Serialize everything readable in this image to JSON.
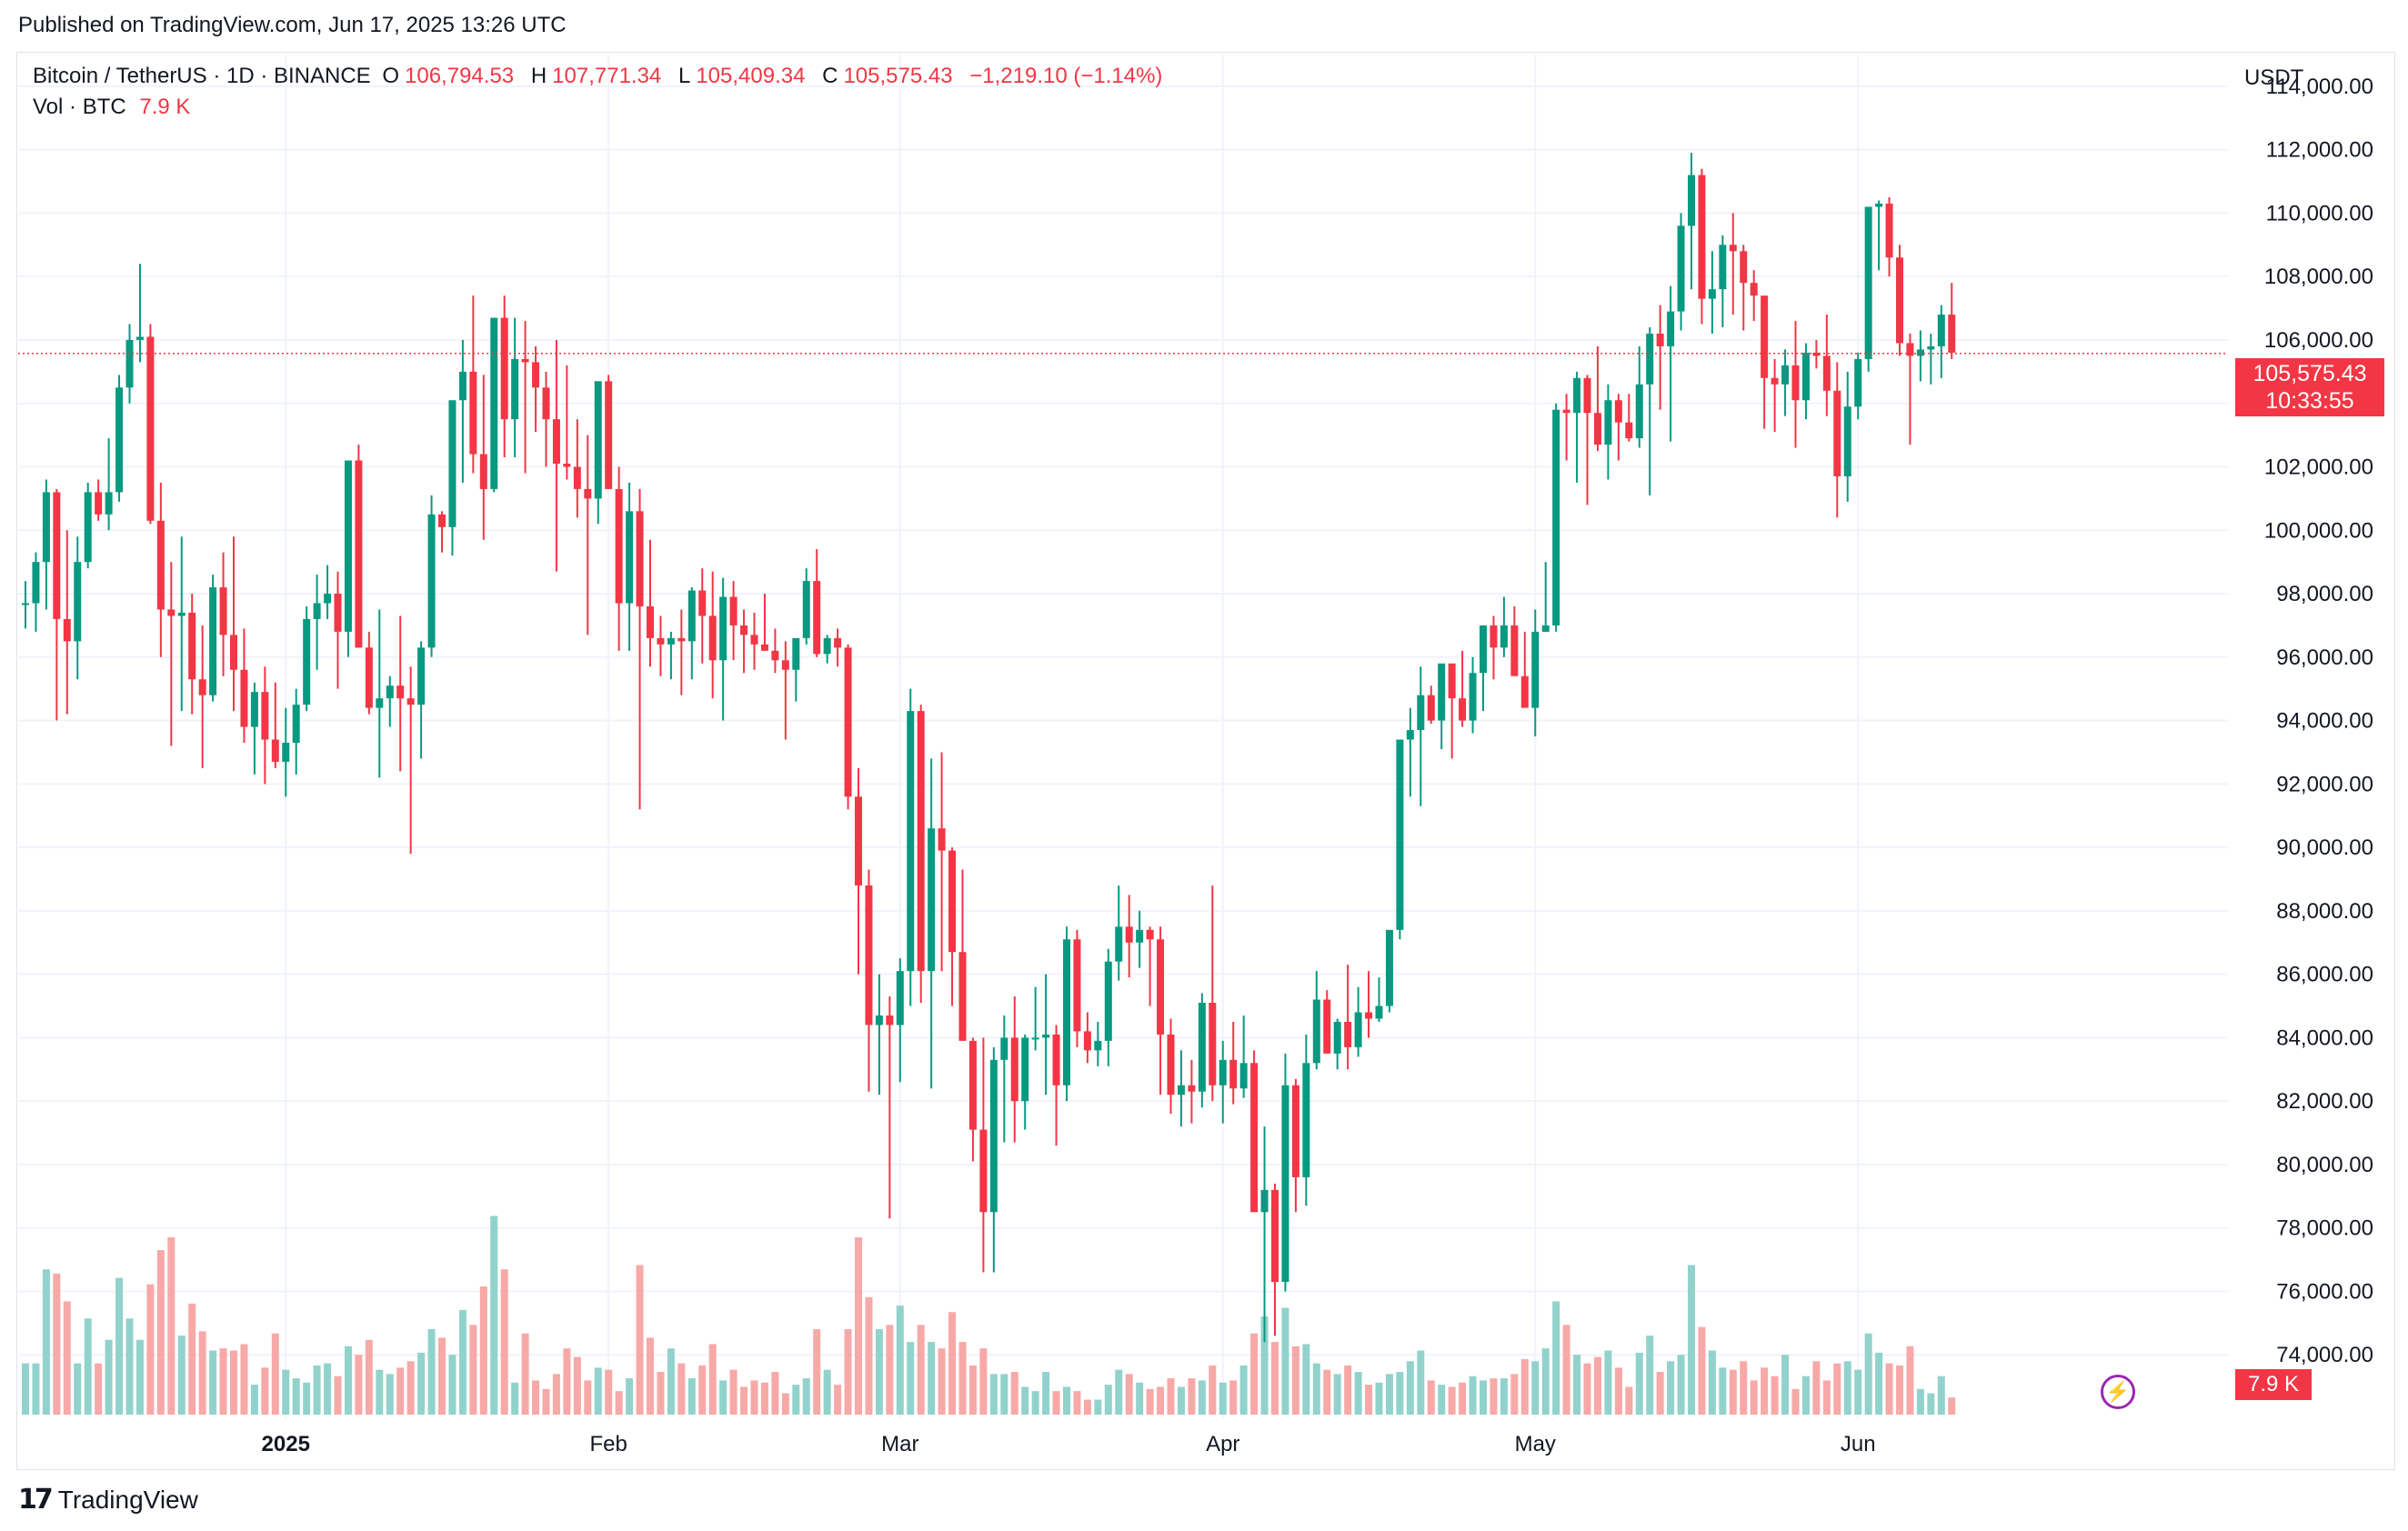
{
  "header": {
    "published": "Published on TradingView.com, Jun 17, 2025 13:26 UTC"
  },
  "legend": {
    "symbol": "Bitcoin / TetherUS · 1D · BINANCE",
    "open_label": "O",
    "open": "106,794.53",
    "high_label": "H",
    "high": "107,771.34",
    "low_label": "L",
    "low": "105,409.34",
    "close_label": "C",
    "close": "105,575.43",
    "change": "−1,219.10 (−1.14%)",
    "vol_label": "Vol · BTC",
    "vol_value": "7.9 K"
  },
  "price_axis": {
    "unit": "USDT"
  },
  "last_price": {
    "price": "105,575.43",
    "countdown": "10:33:55",
    "volume_tag": "7.9 K"
  },
  "footer": {
    "brand": "TradingView",
    "brand_mark": "17"
  },
  "colors": {
    "up": "#089981",
    "down": "#f23645",
    "vol_up": "#92d2cc",
    "vol_down": "#f7a9a7",
    "grid": "#f0f3fa"
  },
  "chart_data": {
    "type": "candlestick",
    "symbol": "BTCUSDT",
    "interval": "1D",
    "ylim": [
      72000,
      115000
    ],
    "y_ticks": [
      74000,
      76000,
      78000,
      80000,
      82000,
      84000,
      86000,
      88000,
      90000,
      92000,
      94000,
      96000,
      98000,
      100000,
      102000,
      104000,
      106000,
      108000,
      110000,
      112000,
      114000
    ],
    "x_ticks": [
      {
        "label": "2025",
        "index": 25,
        "bold": true
      },
      {
        "label": "Feb",
        "index": 56
      },
      {
        "label": "Mar",
        "index": 84
      },
      {
        "label": "Apr",
        "index": 115
      },
      {
        "label": "May",
        "index": 145
      },
      {
        "label": "Jun",
        "index": 176
      }
    ],
    "last_close": 105575.43,
    "grid": true,
    "series_ohlcv": [
      [
        97700,
        98400,
        96900,
        97700,
        24
      ],
      [
        97700,
        99300,
        96800,
        99000,
        24
      ],
      [
        99000,
        101600,
        97500,
        101200,
        68
      ],
      [
        101200,
        101300,
        94000,
        97200,
        66
      ],
      [
        97200,
        100000,
        94200,
        96500,
        53
      ],
      [
        96500,
        99800,
        95300,
        99000,
        24
      ],
      [
        99000,
        101500,
        98800,
        101200,
        45
      ],
      [
        101200,
        101600,
        100300,
        100500,
        24
      ],
      [
        100500,
        102900,
        100000,
        101200,
        35
      ],
      [
        101200,
        104900,
        100900,
        104500,
        64
      ],
      [
        104500,
        106500,
        104000,
        106000,
        45
      ],
      [
        106000,
        108400,
        105300,
        106100,
        35
      ],
      [
        106100,
        106500,
        100200,
        100300,
        61
      ],
      [
        100300,
        101500,
        96000,
        97500,
        77
      ],
      [
        97500,
        99000,
        93200,
        97300,
        83
      ],
      [
        97300,
        99800,
        94300,
        97400,
        37
      ],
      [
        97400,
        98000,
        94200,
        95300,
        52
      ],
      [
        95300,
        97000,
        92500,
        94800,
        39
      ],
      [
        94800,
        98600,
        94600,
        98200,
        30
      ],
      [
        98200,
        99300,
        95400,
        96700,
        31
      ],
      [
        96700,
        99800,
        94300,
        95600,
        30
      ],
      [
        95600,
        96900,
        93300,
        93800,
        33
      ],
      [
        93800,
        95200,
        92300,
        94900,
        14
      ],
      [
        94900,
        95700,
        92000,
        93400,
        22
      ],
      [
        93400,
        95200,
        92500,
        92700,
        38
      ],
      [
        92700,
        94400,
        91600,
        93300,
        21
      ],
      [
        93300,
        95000,
        92300,
        94500,
        17
      ],
      [
        94500,
        97600,
        94300,
        97200,
        15
      ],
      [
        97200,
        98600,
        95600,
        97700,
        23
      ],
      [
        97700,
        98900,
        97200,
        98000,
        24
      ],
      [
        98000,
        98700,
        95000,
        96800,
        18
      ],
      [
        96800,
        101200,
        96000,
        102200,
        32
      ],
      [
        102200,
        102700,
        96300,
        96300,
        28
      ],
      [
        96300,
        96800,
        94200,
        94400,
        35
      ],
      [
        94400,
        97500,
        92200,
        94700,
        21
      ],
      [
        94700,
        95400,
        93800,
        95100,
        19
      ],
      [
        95100,
        97300,
        92400,
        94700,
        22
      ],
      [
        94700,
        95700,
        89800,
        94500,
        25
      ],
      [
        94500,
        96500,
        92800,
        96300,
        29
      ],
      [
        96300,
        101100,
        96000,
        100500,
        40
      ],
      [
        100500,
        100600,
        99300,
        100100,
        36
      ],
      [
        100100,
        104000,
        99200,
        104100,
        28
      ],
      [
        104100,
        106000,
        101500,
        105000,
        49
      ],
      [
        105000,
        107400,
        101800,
        102400,
        42
      ],
      [
        102400,
        104900,
        99700,
        101300,
        60
      ],
      [
        101300,
        106300,
        101200,
        106700,
        93
      ],
      [
        106700,
        107400,
        102300,
        103500,
        68
      ],
      [
        103500,
        106700,
        102300,
        105400,
        15
      ],
      [
        105400,
        106600,
        101800,
        105300,
        38
      ],
      [
        105300,
        105800,
        103100,
        104500,
        16
      ],
      [
        104500,
        105000,
        102000,
        103500,
        12
      ],
      [
        103500,
        106000,
        98700,
        102100,
        19
      ],
      [
        102100,
        105200,
        101600,
        102000,
        31
      ],
      [
        102000,
        103500,
        100400,
        101300,
        27
      ],
      [
        101300,
        103000,
        96700,
        101000,
        16
      ],
      [
        101000,
        103200,
        100200,
        104700,
        22
      ],
      [
        104700,
        104900,
        101500,
        101300,
        21
      ],
      [
        101300,
        102000,
        96200,
        97700,
        11
      ],
      [
        97700,
        101500,
        96200,
        100600,
        17
      ],
      [
        100600,
        101300,
        91200,
        97600,
        70
      ],
      [
        97600,
        99700,
        95700,
        96600,
        36
      ],
      [
        96600,
        97300,
        95400,
        96400,
        20
      ],
      [
        96400,
        96800,
        95300,
        96600,
        31
      ],
      [
        96600,
        97500,
        94800,
        96500,
        24
      ],
      [
        96500,
        98200,
        95300,
        98100,
        17
      ],
      [
        98100,
        98800,
        95800,
        97300,
        23
      ],
      [
        97300,
        98700,
        94700,
        95900,
        33
      ],
      [
        95900,
        98500,
        94000,
        97900,
        16
      ],
      [
        97900,
        98400,
        95900,
        97000,
        21
      ],
      [
        97000,
        97500,
        95500,
        96700,
        13
      ],
      [
        96700,
        97400,
        95600,
        96400,
        16
      ],
      [
        96400,
        98000,
        96200,
        96200,
        15
      ],
      [
        96200,
        96900,
        95500,
        95900,
        20
      ],
      [
        95900,
        96500,
        93400,
        95600,
        10
      ],
      [
        95600,
        96400,
        94600,
        96600,
        14
      ],
      [
        96600,
        98800,
        96400,
        98400,
        17
      ],
      [
        98400,
        99400,
        96000,
        96100,
        40
      ],
      [
        96100,
        96700,
        95800,
        96600,
        21
      ],
      [
        96600,
        96900,
        95700,
        96300,
        14
      ],
      [
        96300,
        96400,
        91200,
        91600,
        40
      ],
      [
        91600,
        92500,
        86000,
        88800,
        83
      ],
      [
        88800,
        89300,
        82300,
        84400,
        55
      ],
      [
        84400,
        86000,
        82200,
        84700,
        40
      ],
      [
        84700,
        85300,
        78300,
        84400,
        42
      ],
      [
        84400,
        86500,
        82600,
        86100,
        51
      ],
      [
        86100,
        95000,
        85000,
        94300,
        34
      ],
      [
        94300,
        94500,
        85100,
        86100,
        42
      ],
      [
        86100,
        92800,
        82400,
        90600,
        34
      ],
      [
        90600,
        93000,
        86100,
        89900,
        31
      ],
      [
        89900,
        90000,
        85000,
        86700,
        48
      ],
      [
        86700,
        89300,
        84700,
        83900,
        34
      ],
      [
        83900,
        84000,
        80100,
        81100,
        23
      ],
      [
        81100,
        84000,
        76600,
        78500,
        31
      ],
      [
        78500,
        83700,
        76600,
        83300,
        19
      ],
      [
        83300,
        84700,
        80700,
        84000,
        19
      ],
      [
        84000,
        85300,
        80700,
        82000,
        20
      ],
      [
        82000,
        84100,
        81100,
        84000,
        13
      ],
      [
        84000,
        85600,
        83600,
        84000,
        11
      ],
      [
        84000,
        86000,
        82200,
        84100,
        20
      ],
      [
        84100,
        84400,
        80600,
        82500,
        11
      ],
      [
        82500,
        87500,
        82000,
        87100,
        13
      ],
      [
        87100,
        87400,
        83700,
        84200,
        11
      ],
      [
        84200,
        84800,
        83200,
        83600,
        7
      ],
      [
        83600,
        84500,
        83100,
        83900,
        7
      ],
      [
        83900,
        86800,
        83100,
        86400,
        14
      ],
      [
        86400,
        88800,
        85800,
        87500,
        21
      ],
      [
        87500,
        88500,
        85900,
        87000,
        19
      ],
      [
        87000,
        88000,
        86200,
        87400,
        15
      ],
      [
        87400,
        87500,
        85000,
        87100,
        12
      ],
      [
        87100,
        87500,
        82200,
        84100,
        13
      ],
      [
        84100,
        84600,
        81600,
        82200,
        17
      ],
      [
        82200,
        83600,
        81200,
        82500,
        13
      ],
      [
        82500,
        83300,
        81300,
        82300,
        17
      ],
      [
        82300,
        85400,
        81800,
        85100,
        16
      ],
      [
        85100,
        88800,
        82000,
        82500,
        23
      ],
      [
        82500,
        83900,
        81300,
        83300,
        15
      ],
      [
        83300,
        84500,
        81900,
        82400,
        16
      ],
      [
        82400,
        84700,
        82100,
        83200,
        23
      ],
      [
        83200,
        83600,
        79500,
        78500,
        38
      ],
      [
        78500,
        81200,
        74400,
        79200,
        46
      ],
      [
        79200,
        79400,
        74600,
        76300,
        34
      ],
      [
        76300,
        83500,
        76000,
        82500,
        50
      ],
      [
        82500,
        82700,
        78500,
        79600,
        32
      ],
      [
        79600,
        84100,
        78700,
        83200,
        33
      ],
      [
        83200,
        86100,
        83000,
        85200,
        24
      ],
      [
        85200,
        85500,
        83500,
        83500,
        21
      ],
      [
        83500,
        84600,
        83000,
        84500,
        19
      ],
      [
        84500,
        86300,
        83000,
        83700,
        23
      ],
      [
        83700,
        85600,
        83400,
        84800,
        20
      ],
      [
        84800,
        86100,
        84000,
        84600,
        14
      ],
      [
        84600,
        85900,
        84500,
        85000,
        15
      ],
      [
        85000,
        87000,
        84800,
        87400,
        19
      ],
      [
        87400,
        88600,
        87100,
        93400,
        20
      ],
      [
        93400,
        94400,
        91600,
        93700,
        25
      ],
      [
        93700,
        95700,
        91300,
        94800,
        30
      ],
      [
        94800,
        95100,
        93900,
        94000,
        16
      ],
      [
        94000,
        95000,
        93100,
        95800,
        14
      ],
      [
        95800,
        95500,
        92800,
        94700,
        13
      ],
      [
        94700,
        96200,
        93800,
        94000,
        15
      ],
      [
        94000,
        96000,
        93600,
        95500,
        18
      ],
      [
        95500,
        96500,
        94300,
        97000,
        16
      ],
      [
        97000,
        97300,
        95300,
        96300,
        17
      ],
      [
        96300,
        97900,
        96000,
        97000,
        17
      ],
      [
        97000,
        97600,
        95700,
        95400,
        19
      ],
      [
        95400,
        96800,
        95000,
        94400,
        26
      ],
      [
        94400,
        97500,
        93500,
        96800,
        25
      ],
      [
        96800,
        99000,
        96800,
        97000,
        31
      ],
      [
        97000,
        104000,
        96800,
        103800,
        53
      ],
      [
        103800,
        104300,
        102200,
        103700,
        42
      ],
      [
        103700,
        105000,
        101500,
        104800,
        28
      ],
      [
        104800,
        104900,
        100800,
        103700,
        24
      ],
      [
        103700,
        105800,
        102500,
        102700,
        27
      ],
      [
        102700,
        104600,
        101600,
        104100,
        30
      ],
      [
        104100,
        104300,
        102200,
        103400,
        22
      ],
      [
        103400,
        104300,
        102800,
        102900,
        13
      ],
      [
        102900,
        105800,
        102600,
        104600,
        29
      ],
      [
        104600,
        106400,
        101100,
        106200,
        37
      ],
      [
        106200,
        107100,
        103800,
        105800,
        20
      ],
      [
        105800,
        107700,
        102800,
        106900,
        25
      ],
      [
        106900,
        110000,
        106300,
        109600,
        28
      ],
      [
        109600,
        111900,
        107600,
        111200,
        70
      ],
      [
        111200,
        111400,
        106500,
        107300,
        41
      ],
      [
        107300,
        108800,
        106200,
        107600,
        30
      ],
      [
        107600,
        109300,
        106400,
        109000,
        22
      ],
      [
        109000,
        110000,
        106800,
        108800,
        21
      ],
      [
        108800,
        109000,
        106300,
        107800,
        25
      ],
      [
        107800,
        108200,
        106600,
        107400,
        16
      ],
      [
        107400,
        107300,
        103200,
        104800,
        22
      ],
      [
        104800,
        105400,
        103100,
        104600,
        18
      ],
      [
        104600,
        105700,
        103600,
        105200,
        28
      ],
      [
        105200,
        106600,
        102600,
        104100,
        12
      ],
      [
        104100,
        105900,
        103500,
        105600,
        18
      ],
      [
        105600,
        106000,
        105100,
        105500,
        25
      ],
      [
        105500,
        106800,
        103600,
        104400,
        16
      ],
      [
        104400,
        105300,
        100400,
        101700,
        24
      ],
      [
        101700,
        105000,
        100900,
        103900,
        25
      ],
      [
        103900,
        105600,
        103500,
        105400,
        21
      ],
      [
        105400,
        109800,
        105000,
        110200,
        38
      ],
      [
        110200,
        110400,
        108200,
        110300,
        29
      ],
      [
        110300,
        110500,
        108000,
        108600,
        24
      ],
      [
        108600,
        109000,
        105500,
        105900,
        23
      ],
      [
        105900,
        106200,
        102700,
        105500,
        32
      ],
      [
        105500,
        106300,
        104700,
        105700,
        12
      ],
      [
        105700,
        106200,
        104600,
        105800,
        10
      ],
      [
        105800,
        107100,
        104800,
        106800,
        18
      ],
      [
        106800,
        107800,
        105400,
        105600,
        8
      ]
    ]
  }
}
